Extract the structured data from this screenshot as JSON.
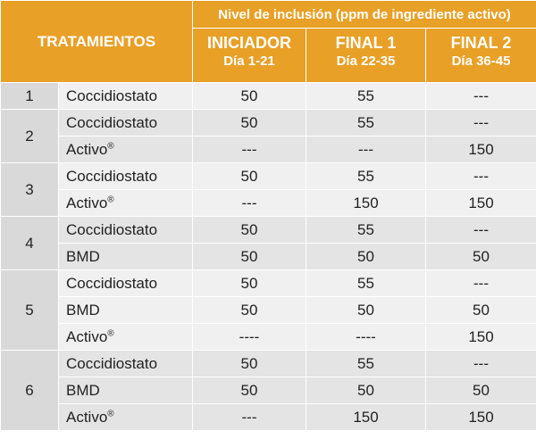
{
  "header": {
    "tratamientos": "TRATAMIENTOS",
    "nivel": "Nivel de inclusión (ppm de ingrediente activo)",
    "phases": [
      {
        "name": "INICIADOR",
        "days": "Día 1-21"
      },
      {
        "name": "FINAL 1",
        "days": "Día 22-35"
      },
      {
        "name": "FINAL 2",
        "days": "Día 36-45"
      }
    ]
  },
  "groups": [
    {
      "num": "1",
      "rows": [
        {
          "product": "Coccidiostato",
          "v": [
            "50",
            "55",
            "---"
          ]
        }
      ]
    },
    {
      "num": "2",
      "rows": [
        {
          "product": "Coccidiostato",
          "v": [
            "50",
            "55",
            "---"
          ]
        },
        {
          "product": "Activo®",
          "v": [
            "---",
            "---",
            "150"
          ]
        }
      ]
    },
    {
      "num": "3",
      "rows": [
        {
          "product": "Coccidiostato",
          "v": [
            "50",
            "55",
            "---"
          ]
        },
        {
          "product": "Activo®",
          "v": [
            "---",
            "150",
            "150"
          ]
        }
      ]
    },
    {
      "num": "4",
      "rows": [
        {
          "product": "Coccidiostato",
          "v": [
            "50",
            "55",
            "---"
          ]
        },
        {
          "product": "BMD",
          "v": [
            "50",
            "50",
            "50"
          ]
        }
      ]
    },
    {
      "num": "5",
      "rows": [
        {
          "product": "Coccidiostato",
          "v": [
            "50",
            "55",
            "---"
          ]
        },
        {
          "product": "BMD",
          "v": [
            "50",
            "50",
            "50"
          ]
        },
        {
          "product": "Activo®",
          "v": [
            "----",
            "----",
            "150"
          ]
        }
      ]
    },
    {
      "num": "6",
      "rows": [
        {
          "product": "Coccidiostato",
          "v": [
            "50",
            "55",
            "---"
          ]
        },
        {
          "product": "BMD",
          "v": [
            "50",
            "50",
            "50"
          ]
        },
        {
          "product": "Activo®",
          "v": [
            "---",
            "150",
            "150"
          ]
        }
      ]
    }
  ],
  "colors": {
    "header_bg": "#e8a027",
    "num_bg": "#d9d9d9",
    "row_light": "#f0f0f0",
    "row_dark": "#e4e4e4"
  }
}
